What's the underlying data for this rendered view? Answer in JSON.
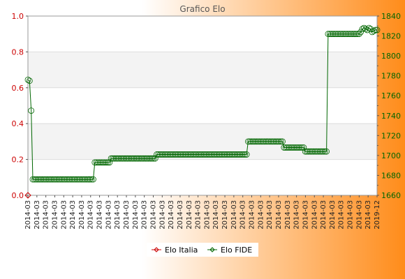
{
  "chart_data": {
    "type": "line",
    "title": "Grafico Elo",
    "background": {
      "left": "#ffffff",
      "right": "#ff8c1a"
    },
    "y_left": {
      "min": 0,
      "max": 1,
      "ticks": [
        "0.0",
        "0.2",
        "0.4",
        "0.6",
        "0.8",
        "1.0"
      ],
      "color": "#cc0000"
    },
    "y_right": {
      "min": 1660,
      "max": 1840,
      "ticks": [
        "1660",
        "1680",
        "1700",
        "1720",
        "1740",
        "1760",
        "1780",
        "1800",
        "1820",
        "1840"
      ],
      "color": "#006600"
    },
    "x_first_label": "2014-03",
    "x_last_label": "2019-12",
    "series": [
      {
        "name": "Elo Italia",
        "axis": "left",
        "color": "#cc0000",
        "values": [
          0
        ]
      },
      {
        "name": "Elo FIDE",
        "axis": "right",
        "color": "#006600",
        "values": [
          1776,
          1775,
          1745,
          1676,
          1676,
          1676,
          1676,
          1676,
          1676,
          1676,
          1676,
          1676,
          1676,
          1676,
          1676,
          1676,
          1676,
          1676,
          1676,
          1676,
          1676,
          1676,
          1676,
          1676,
          1676,
          1676,
          1676,
          1676,
          1676,
          1676,
          1676,
          1676,
          1676,
          1676,
          1676,
          1676,
          1676,
          1676,
          1676,
          1676,
          1676,
          1693,
          1693,
          1693,
          1693,
          1693,
          1693,
          1693,
          1693,
          1693,
          1693,
          1697,
          1697,
          1697,
          1697,
          1697,
          1697,
          1697,
          1697,
          1697,
          1697,
          1697,
          1697,
          1697,
          1697,
          1697,
          1697,
          1697,
          1697,
          1697,
          1697,
          1697,
          1697,
          1697,
          1697,
          1697,
          1697,
          1697,
          1697,
          1701,
          1701,
          1701,
          1701,
          1701,
          1701,
          1701,
          1701,
          1701,
          1701,
          1701,
          1701,
          1701,
          1701,
          1701,
          1701,
          1701,
          1701,
          1701,
          1701,
          1701,
          1701,
          1701,
          1701,
          1701,
          1701,
          1701,
          1701,
          1701,
          1701,
          1701,
          1701,
          1701,
          1701,
          1701,
          1701,
          1701,
          1701,
          1701,
          1701,
          1701,
          1701,
          1701,
          1701,
          1701,
          1701,
          1701,
          1701,
          1701,
          1701,
          1701,
          1701,
          1701,
          1701,
          1701,
          1701,
          1714,
          1714,
          1714,
          1714,
          1714,
          1714,
          1714,
          1714,
          1714,
          1714,
          1714,
          1714,
          1714,
          1714,
          1714,
          1714,
          1714,
          1714,
          1714,
          1714,
          1714,
          1714,
          1708,
          1708,
          1708,
          1708,
          1708,
          1708,
          1708,
          1708,
          1708,
          1708,
          1708,
          1708,
          1708,
          1704,
          1704,
          1704,
          1704,
          1704,
          1704,
          1704,
          1704,
          1704,
          1704,
          1704,
          1704,
          1704,
          1704,
          1822,
          1822,
          1822,
          1822,
          1822,
          1822,
          1822,
          1822,
          1822,
          1822,
          1822,
          1822,
          1822,
          1822,
          1822,
          1822,
          1822,
          1822,
          1822,
          1822,
          1824,
          1827,
          1828,
          1827,
          1826,
          1828,
          1827,
          1824,
          1825,
          1826,
          1826
        ]
      }
    ],
    "legend": {
      "position": "bottom"
    }
  }
}
